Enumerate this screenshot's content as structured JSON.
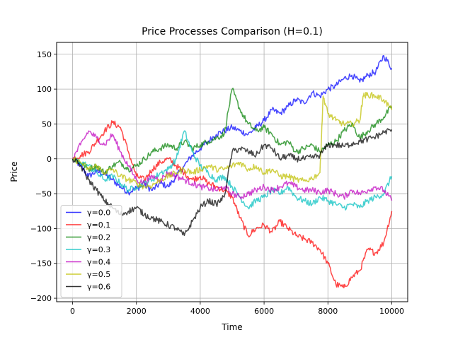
{
  "chart_data": {
    "type": "line",
    "title": "Price Processes Comparison (H=0.1)",
    "xlabel": "Time",
    "ylabel": "Price",
    "xlim": [
      -500,
      10500
    ],
    "ylim": [
      -205,
      167
    ],
    "xticks": [
      0,
      2000,
      4000,
      6000,
      8000,
      10000
    ],
    "xtick_labels": [
      "0",
      "2000",
      "4000",
      "6000",
      "8000",
      "10000"
    ],
    "yticks": [
      -200,
      -150,
      -100,
      -50,
      0,
      50,
      100,
      150
    ],
    "ytick_labels": [
      "−200",
      "−150",
      "−100",
      "−50",
      "0",
      "50",
      "100",
      "150"
    ],
    "grid": true,
    "legend_position": "lower left",
    "series": [
      {
        "name": "γ=0.0",
        "color": "#0000ff",
        "x": [
          0,
          250,
          500,
          750,
          1000,
          1250,
          1500,
          1750,
          2000,
          2250,
          2500,
          2750,
          3000,
          3250,
          3500,
          3750,
          4000,
          4250,
          4500,
          4750,
          5000,
          5250,
          5500,
          5750,
          6000,
          6250,
          6500,
          6750,
          7000,
          7250,
          7500,
          7750,
          8000,
          8250,
          8500,
          8750,
          9000,
          9250,
          9500,
          9750,
          10000
        ],
        "values": [
          0,
          -10,
          -25,
          -18,
          -22,
          -30,
          -40,
          -48,
          -42,
          -38,
          -45,
          -35,
          -40,
          -25,
          -10,
          5,
          15,
          25,
          35,
          40,
          45,
          40,
          35,
          45,
          55,
          70,
          65,
          75,
          85,
          80,
          95,
          90,
          100,
          105,
          115,
          120,
          110,
          120,
          125,
          148,
          130
        ]
      },
      {
        "name": "γ=0.1",
        "color": "#ff0000",
        "x": [
          0,
          250,
          500,
          750,
          1000,
          1250,
          1500,
          1750,
          2000,
          2250,
          2500,
          2750,
          3000,
          3250,
          3500,
          3750,
          4000,
          4250,
          4500,
          4750,
          5000,
          5250,
          5500,
          5750,
          6000,
          6250,
          6500,
          6750,
          7000,
          7250,
          7500,
          7750,
          8000,
          8250,
          8500,
          8750,
          9000,
          9250,
          9500,
          9750,
          10000
        ],
        "values": [
          0,
          5,
          10,
          25,
          40,
          52,
          45,
          10,
          -25,
          -30,
          -15,
          -5,
          0,
          -10,
          -20,
          -30,
          -25,
          -35,
          -40,
          -45,
          -55,
          -85,
          -110,
          -100,
          -95,
          -105,
          -90,
          -100,
          -110,
          -115,
          -120,
          -130,
          -150,
          -180,
          -185,
          -170,
          -160,
          -130,
          -135,
          -120,
          -75
        ]
      },
      {
        "name": "γ=0.2",
        "color": "#008000",
        "x": [
          0,
          250,
          500,
          750,
          1000,
          1250,
          1500,
          1750,
          2000,
          2250,
          2500,
          2750,
          3000,
          3250,
          3500,
          3750,
          4000,
          4250,
          4500,
          4750,
          5000,
          5250,
          5500,
          5750,
          6000,
          6250,
          6500,
          6750,
          7000,
          7250,
          7500,
          7750,
          8000,
          8250,
          8500,
          8750,
          9000,
          9250,
          9500,
          9750,
          10000
        ],
        "values": [
          0,
          -5,
          -15,
          -10,
          -20,
          -10,
          -5,
          -15,
          -10,
          0,
          10,
          15,
          20,
          15,
          25,
          15,
          20,
          25,
          30,
          35,
          100,
          70,
          50,
          40,
          45,
          35,
          20,
          25,
          10,
          15,
          20,
          10,
          20,
          25,
          40,
          50,
          30,
          40,
          50,
          60,
          75
        ]
      },
      {
        "name": "γ=0.3",
        "color": "#00bfbf",
        "x": [
          0,
          250,
          500,
          750,
          1000,
          1250,
          1500,
          1750,
          2000,
          2250,
          2500,
          2750,
          3000,
          3250,
          3500,
          3750,
          4000,
          4250,
          4500,
          4750,
          5000,
          5250,
          5500,
          5750,
          6000,
          6250,
          6500,
          6750,
          7000,
          7250,
          7500,
          7750,
          8000,
          8250,
          8500,
          8750,
          9000,
          9250,
          9500,
          9750,
          10000
        ],
        "values": [
          0,
          -5,
          -10,
          -20,
          -30,
          -25,
          -35,
          -45,
          -40,
          -35,
          -30,
          -20,
          -15,
          0,
          40,
          10,
          -10,
          -20,
          -30,
          -25,
          -40,
          -55,
          -70,
          -60,
          -55,
          -45,
          -50,
          -40,
          -55,
          -60,
          -65,
          -55,
          -60,
          -65,
          -70,
          -65,
          -70,
          -60,
          -55,
          -50,
          -25
        ]
      },
      {
        "name": "γ=0.4",
        "color": "#bf00bf",
        "x": [
          0,
          250,
          500,
          750,
          1000,
          1250,
          1500,
          1750,
          2000,
          2250,
          2500,
          2750,
          3000,
          3250,
          3500,
          3750,
          4000,
          4250,
          4500,
          4750,
          5000,
          5250,
          5500,
          5750,
          6000,
          6250,
          6500,
          6750,
          7000,
          7250,
          7500,
          7750,
          8000,
          8250,
          8500,
          8750,
          9000,
          9250,
          9500,
          9750,
          10000
        ],
        "values": [
          0,
          20,
          40,
          30,
          20,
          35,
          10,
          -10,
          -30,
          -35,
          -25,
          -30,
          -20,
          -25,
          -30,
          -35,
          -40,
          -42,
          -45,
          -40,
          -50,
          -55,
          -50,
          -45,
          -40,
          -45,
          -40,
          -35,
          -40,
          -45,
          -45,
          -48,
          -45,
          -50,
          -55,
          -45,
          -50,
          -45,
          -40,
          -45,
          -60
        ]
      },
      {
        "name": "γ=0.5",
        "color": "#bfbf00",
        "x": [
          0,
          250,
          500,
          750,
          1000,
          1250,
          1500,
          1750,
          2000,
          2250,
          2500,
          2750,
          3000,
          3250,
          3500,
          3750,
          4000,
          4250,
          4500,
          4750,
          5000,
          5250,
          5500,
          5750,
          6000,
          6250,
          6500,
          6750,
          7000,
          7250,
          7500,
          7750,
          7850,
          8000,
          8250,
          8500,
          8750,
          9000,
          9100,
          9250,
          9500,
          9750,
          10000
        ],
        "values": [
          0,
          -5,
          -15,
          -10,
          -20,
          -15,
          -25,
          -30,
          -35,
          -40,
          -38,
          -30,
          -25,
          -20,
          -15,
          -20,
          -15,
          -10,
          -15,
          -15,
          -10,
          -5,
          -15,
          -10,
          -20,
          -15,
          -25,
          -25,
          -30,
          -32,
          -28,
          -20,
          90,
          65,
          55,
          50,
          50,
          55,
          90,
          92,
          90,
          85,
          70
        ]
      },
      {
        "name": "γ=0.6",
        "color": "#000000",
        "x": [
          0,
          250,
          500,
          750,
          1000,
          1250,
          1500,
          1750,
          2000,
          2250,
          2500,
          2750,
          3000,
          3250,
          3500,
          3750,
          4000,
          4250,
          4500,
          4750,
          5000,
          5250,
          5500,
          5750,
          6000,
          6250,
          6500,
          6750,
          7000,
          7250,
          7500,
          7750,
          8000,
          8250,
          8500,
          8750,
          9000,
          9250,
          9500,
          9750,
          10000
        ],
        "values": [
          0,
          -10,
          -30,
          -45,
          -60,
          -70,
          -80,
          -75,
          -70,
          -80,
          -85,
          -90,
          -95,
          -100,
          -110,
          -90,
          -70,
          -60,
          -65,
          -55,
          10,
          15,
          10,
          5,
          20,
          15,
          0,
          5,
          0,
          0,
          2,
          5,
          20,
          20,
          18,
          22,
          25,
          28,
          32,
          38,
          42
        ]
      }
    ]
  }
}
